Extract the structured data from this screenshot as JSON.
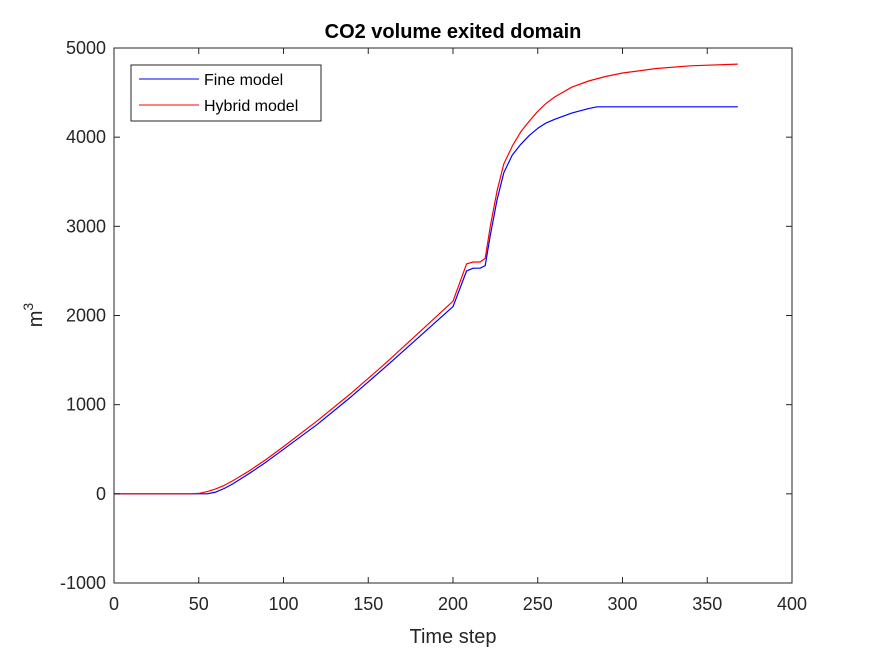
{
  "chart_data": {
    "type": "line",
    "title": "CO2 volume exited domain",
    "xlabel": "Time step",
    "ylabel": "m",
    "ylabel_superscript": "3",
    "xlim": [
      0,
      400
    ],
    "ylim": [
      -1000,
      5000
    ],
    "xticks": [
      0,
      50,
      100,
      150,
      200,
      250,
      300,
      350,
      400
    ],
    "yticks": [
      -1000,
      0,
      1000,
      2000,
      3000,
      4000,
      5000
    ],
    "xtick_labels": [
      "0",
      "50",
      "100",
      "150",
      "200",
      "250",
      "300",
      "350",
      "400"
    ],
    "ytick_labels": [
      "-1000",
      "0",
      "1000",
      "2000",
      "3000",
      "4000",
      "5000"
    ],
    "grid": false,
    "legend_position": "top-left",
    "series": [
      {
        "name": "Fine model",
        "color": "#0000ff",
        "x": [
          0,
          50,
          55,
          60,
          65,
          70,
          80,
          90,
          100,
          120,
          140,
          160,
          180,
          200,
          208,
          212,
          216,
          219,
          222,
          226,
          230,
          235,
          240,
          245,
          250,
          255,
          260,
          270,
          280,
          285,
          300,
          320,
          340,
          368
        ],
        "y": [
          0,
          0,
          0,
          20,
          60,
          110,
          230,
          360,
          500,
          780,
          1090,
          1420,
          1760,
          2100,
          2500,
          2530,
          2530,
          2560,
          2900,
          3300,
          3600,
          3800,
          3920,
          4020,
          4100,
          4160,
          4200,
          4270,
          4320,
          4340,
          4340,
          4340,
          4340,
          4340
        ]
      },
      {
        "name": "Hybrid model",
        "color": "#ff0000",
        "x": [
          0,
          45,
          50,
          55,
          60,
          65,
          70,
          80,
          90,
          100,
          120,
          140,
          160,
          180,
          200,
          208,
          212,
          216,
          219,
          222,
          226,
          230,
          235,
          240,
          245,
          250,
          255,
          260,
          270,
          280,
          290,
          300,
          320,
          340,
          368
        ],
        "y": [
          0,
          0,
          5,
          25,
          55,
          95,
          145,
          260,
          390,
          530,
          820,
          1130,
          1460,
          1810,
          2160,
          2580,
          2600,
          2600,
          2640,
          3000,
          3400,
          3700,
          3900,
          4060,
          4180,
          4290,
          4380,
          4450,
          4560,
          4630,
          4680,
          4720,
          4770,
          4800,
          4820
        ]
      }
    ]
  }
}
